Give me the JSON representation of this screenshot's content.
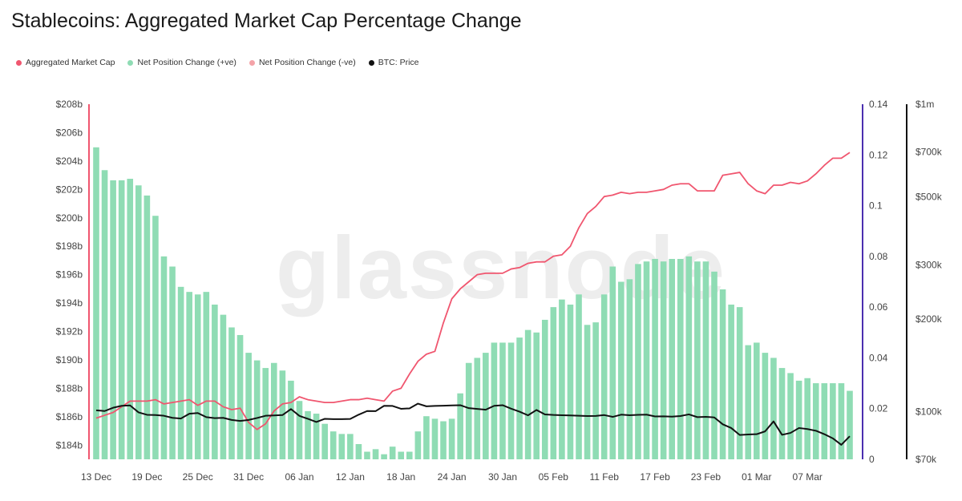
{
  "title": "Stablecoins: Aggregated Market Cap Percentage Change",
  "legend": [
    {
      "label": "Aggregated Market Cap",
      "color": "#f0566f"
    },
    {
      "label": "Net Position Change (+ve)",
      "color": "#8fdcb4"
    },
    {
      "label": "Net Position Change (-ve)",
      "color": "#f4a3a8"
    },
    {
      "label": "BTC: Price",
      "color": "#111111"
    }
  ],
  "watermark": "glassnode",
  "chart_data": {
    "type": "bar+line",
    "x": [
      "13 Dec",
      "14 Dec",
      "15 Dec",
      "16 Dec",
      "17 Dec",
      "18 Dec",
      "19 Dec",
      "20 Dec",
      "21 Dec",
      "22 Dec",
      "23 Dec",
      "24 Dec",
      "25 Dec",
      "26 Dec",
      "27 Dec",
      "28 Dec",
      "29 Dec",
      "30 Dec",
      "31 Dec",
      "01 Jan",
      "02 Jan",
      "03 Jan",
      "04 Jan",
      "05 Jan",
      "06 Jan",
      "07 Jan",
      "08 Jan",
      "09 Jan",
      "10 Jan",
      "11 Jan",
      "12 Jan",
      "13 Jan",
      "14 Jan",
      "15 Jan",
      "16 Jan",
      "17 Jan",
      "18 Jan",
      "19 Jan",
      "20 Jan",
      "21 Jan",
      "22 Jan",
      "23 Jan",
      "24 Jan",
      "25 Jan",
      "26 Jan",
      "27 Jan",
      "28 Jan",
      "29 Jan",
      "30 Jan",
      "31 Jan",
      "01 Feb",
      "02 Feb",
      "03 Feb",
      "04 Feb",
      "05 Feb",
      "06 Feb",
      "07 Feb",
      "08 Feb",
      "09 Feb",
      "10 Feb",
      "11 Feb",
      "12 Feb",
      "13 Feb",
      "14 Feb",
      "15 Feb",
      "16 Feb",
      "17 Feb",
      "18 Feb",
      "19 Feb",
      "20 Feb",
      "21 Feb",
      "22 Feb",
      "23 Feb",
      "24 Feb",
      "25 Feb",
      "26 Feb",
      "27 Feb",
      "28 Feb",
      "01 Mar",
      "02 Mar",
      "03 Mar",
      "04 Mar",
      "05 Mar",
      "06 Mar",
      "07 Mar",
      "08 Mar",
      "09 Mar",
      "10 Mar",
      "11 Mar",
      "12 Mar"
    ],
    "x_tick_labels": [
      "13 Dec",
      "19 Dec",
      "25 Dec",
      "31 Dec",
      "06 Jan",
      "12 Jan",
      "18 Jan",
      "24 Jan",
      "30 Jan",
      "05 Feb",
      "11 Feb",
      "17 Feb",
      "23 Feb",
      "01 Mar",
      "07 Mar"
    ],
    "y_left": {
      "ticks": [
        "$184b",
        "$186b",
        "$188b",
        "$190b",
        "$192b",
        "$194b",
        "$196b",
        "$198b",
        "$200b",
        "$202b",
        "$204b",
        "$206b",
        "$208b"
      ],
      "range": [
        183,
        208
      ]
    },
    "y_mid": {
      "ticks": [
        "0",
        "0.02",
        "0.04",
        "0.06",
        "0.08",
        "0.1",
        "0.12",
        "0.14"
      ],
      "range": [
        0,
        0.14
      ]
    },
    "y_right": {
      "ticks": [
        "$70k",
        "$100k",
        "$200k",
        "$300k",
        "$500k",
        "$700k",
        "$1m"
      ],
      "scale": "log",
      "range": [
        70000,
        1000000
      ]
    },
    "series": [
      {
        "name": "Aggregated Market Cap",
        "axis": "left",
        "kind": "line",
        "color": "#f0566f",
        "values": [
          185.9,
          186.1,
          186.3,
          186.7,
          187.1,
          187.1,
          187.1,
          187.2,
          186.9,
          187.0,
          187.1,
          187.2,
          186.8,
          187.1,
          187.1,
          186.7,
          186.5,
          186.6,
          185.6,
          185.1,
          185.5,
          186.4,
          186.9,
          187.0,
          187.4,
          187.2,
          187.1,
          187.0,
          187.0,
          187.1,
          187.2,
          187.2,
          187.3,
          187.2,
          187.1,
          187.8,
          188.0,
          189.0,
          189.9,
          190.4,
          190.6,
          192.6,
          194.3,
          195.0,
          195.5,
          196.0,
          196.1,
          196.1,
          196.1,
          196.4,
          196.5,
          196.8,
          196.9,
          196.9,
          197.3,
          197.4,
          198.0,
          199.3,
          200.3,
          200.8,
          201.5,
          201.6,
          201.8,
          201.7,
          201.8,
          201.8,
          201.9,
          202.0,
          202.3,
          202.4,
          202.4,
          201.9,
          201.9,
          201.9,
          203.0,
          203.1,
          203.2,
          202.4,
          201.9,
          201.7,
          202.3,
          202.3,
          202.5,
          202.4,
          202.6,
          203.1,
          203.7,
          204.2,
          204.2,
          204.6
        ]
      },
      {
        "name": "Net Position Change (+ve)",
        "axis": "mid",
        "kind": "bar",
        "color": "#8fdcb4",
        "values": [
          0.123,
          0.114,
          0.11,
          0.11,
          0.1106,
          0.108,
          0.104,
          0.096,
          0.08,
          0.076,
          0.068,
          0.066,
          0.065,
          0.066,
          0.061,
          0.057,
          0.052,
          0.049,
          0.042,
          0.039,
          0.036,
          0.038,
          0.035,
          0.031,
          0.023,
          0.019,
          0.018,
          0.014,
          0.011,
          0.01,
          0.01,
          0.006,
          0.003,
          0.004,
          0.002,
          0.005,
          0.003,
          0.003,
          0.011,
          0.017,
          0.016,
          0.015,
          0.016,
          0.026,
          0.038,
          0.04,
          0.042,
          0.046,
          0.046,
          0.046,
          0.048,
          0.051,
          0.05,
          0.055,
          0.06,
          0.063,
          0.061,
          0.065,
          0.053,
          0.054,
          0.065,
          0.076,
          0.07,
          0.071,
          0.077,
          0.078,
          0.079,
          0.078,
          0.079,
          0.079,
          0.08,
          0.078,
          0.078,
          0.074,
          0.067,
          0.061,
          0.06,
          0.045,
          0.046,
          0.042,
          0.04,
          0.036,
          0.034,
          0.031,
          0.032,
          0.03,
          0.03,
          0.03,
          0.03,
          0.027
        ]
      },
      {
        "name": "BTC: Price",
        "axis": "right",
        "kind": "line",
        "color": "#111111",
        "values": [
          101000,
          100500,
          103000,
          104500,
          104800,
          99500,
          97700,
          97500,
          97000,
          95500,
          95000,
          98500,
          99000,
          96000,
          95300,
          95500,
          94000,
          93300,
          94000,
          95400,
          97000,
          97200,
          97500,
          102000,
          96900,
          94800,
          92600,
          94800,
          94600,
          94600,
          94700,
          97800,
          100500,
          100400,
          104500,
          104400,
          102200,
          102500,
          106200,
          104100,
          104400,
          104600,
          104800,
          105000,
          102700,
          102100,
          101500,
          104500,
          105000,
          102300,
          100000,
          97300,
          101300,
          98000,
          97600,
          97400,
          97200,
          97000,
          96800,
          96900,
          97500,
          96200,
          97800,
          97400,
          97700,
          97800,
          96500,
          96600,
          96400,
          96800,
          98000,
          96000,
          96200,
          95800,
          91000,
          88500,
          84000,
          84300,
          84500,
          86300,
          93000,
          84100,
          85300,
          88500,
          87800,
          86700,
          84500,
          81900,
          78000,
          83200
        ]
      }
    ],
    "grid": false,
    "legend_position": "top-left"
  }
}
